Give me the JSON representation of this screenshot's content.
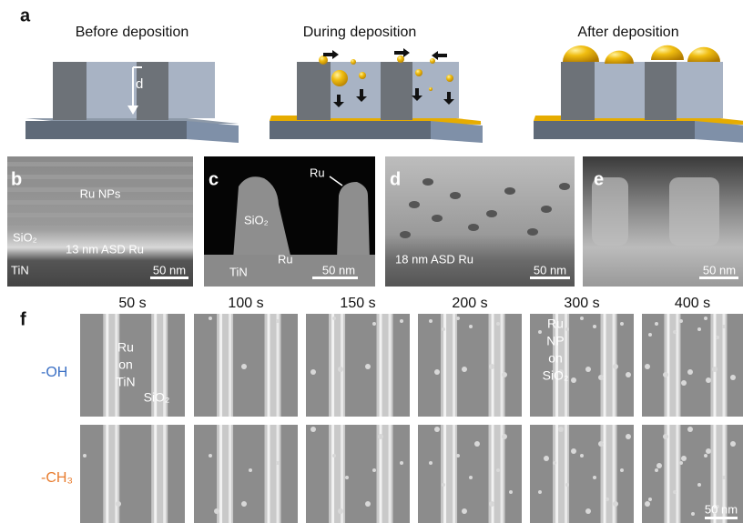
{
  "panel_a": {
    "label": "a",
    "titles": [
      "Before deposition",
      "During deposition",
      "After deposition"
    ],
    "depth_label": "d"
  },
  "panel_b": {
    "label": "b",
    "texts": [
      "Ru NPs",
      "SiO₂",
      "13 nm ASD Ru",
      "TiN"
    ],
    "scale_bar": "50 nm"
  },
  "panel_c": {
    "label": "c",
    "texts": [
      "Ru",
      "SiO₂",
      "Ru",
      "TiN"
    ],
    "scale_bar": "50 nm"
  },
  "panel_d": {
    "label": "d",
    "texts": [
      "18 nm ASD Ru"
    ],
    "scale_bar": "50 nm"
  },
  "panel_e": {
    "label": "e",
    "scale_bar": "50 nm"
  },
  "panel_f": {
    "label": "f",
    "times": [
      "50 s",
      "100 s",
      "150 s",
      "200 s",
      "300 s",
      "400 s"
    ],
    "rows": [
      "-OH",
      "-CH₃"
    ],
    "annotations": {
      "ru_on_tin": [
        "Ru",
        "on",
        "TiN"
      ],
      "sio2": "SiO₂",
      "ru_np_on_sio2": [
        "Ru",
        "NP",
        "on",
        "SiO₂"
      ]
    },
    "scale_bar": "50 nm"
  }
}
